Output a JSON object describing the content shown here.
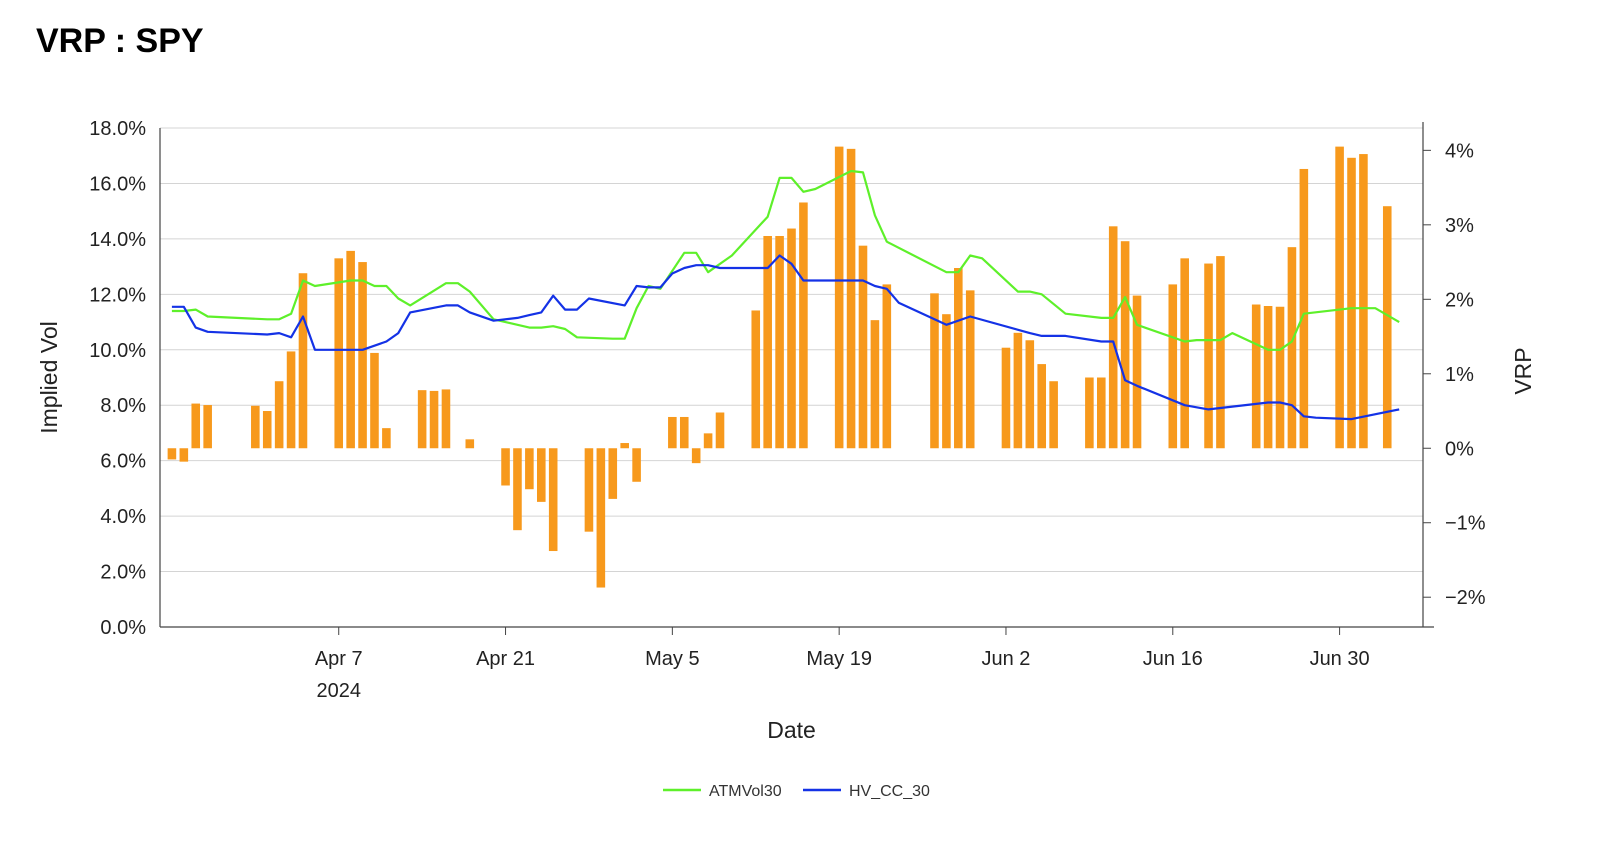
{
  "chart_data": {
    "type": "line+bar",
    "title": "VRP : SPY",
    "xlabel": "Date",
    "ylabel_left": "Implied Vol",
    "ylabel_right": "VRP",
    "x_ticks": [
      {
        "date": "2024-04-07",
        "label": "Apr 7",
        "sublabel": "2024"
      },
      {
        "date": "2024-04-21",
        "label": "Apr 21",
        "sublabel": ""
      },
      {
        "date": "2024-05-05",
        "label": "May 5",
        "sublabel": ""
      },
      {
        "date": "2024-05-19",
        "label": "May 19",
        "sublabel": ""
      },
      {
        "date": "2024-06-02",
        "label": "Jun 2",
        "sublabel": ""
      },
      {
        "date": "2024-06-16",
        "label": "Jun 16",
        "sublabel": ""
      },
      {
        "date": "2024-06-30",
        "label": "Jun 30",
        "sublabel": ""
      }
    ],
    "xlim": [
      "2024-03-23",
      "2024-07-07"
    ],
    "y_left": {
      "lim": [
        0,
        18
      ],
      "ticks": [
        0,
        2,
        4,
        6,
        8,
        10,
        12,
        14,
        16,
        18
      ],
      "labels": [
        "0.0%",
        "2.0%",
        "4.0%",
        "6.0%",
        "8.0%",
        "10.0%",
        "12.0%",
        "14.0%",
        "16.0%",
        "18.0%"
      ]
    },
    "y_right": {
      "lim": [
        -2.4,
        4.3
      ],
      "ticks": [
        -2,
        -1,
        0,
        1,
        2,
        3,
        4
      ],
      "labels": [
        "−2%",
        "−1%",
        "0%",
        "1%",
        "2%",
        "3%",
        "4%"
      ]
    },
    "grid": true,
    "legend_position": "bottom-center",
    "series": [
      {
        "name": "ATMVol30",
        "kind": "line",
        "axis": "left",
        "color": "#5ef02a",
        "points": [
          [
            "2024-03-24",
            11.4
          ],
          [
            "2024-03-25",
            11.4
          ],
          [
            "2024-03-26",
            11.45
          ],
          [
            "2024-03-27",
            11.2
          ],
          [
            "2024-04-01",
            11.1
          ],
          [
            "2024-04-02",
            11.1
          ],
          [
            "2024-04-03",
            11.3
          ],
          [
            "2024-04-04",
            12.5
          ],
          [
            "2024-04-05",
            12.3
          ],
          [
            "2024-04-08",
            12.5
          ],
          [
            "2024-04-09",
            12.5
          ],
          [
            "2024-04-10",
            12.3
          ],
          [
            "2024-04-11",
            12.3
          ],
          [
            "2024-04-12",
            11.85
          ],
          [
            "2024-04-13",
            11.6
          ],
          [
            "2024-04-16",
            12.4
          ],
          [
            "2024-04-17",
            12.4
          ],
          [
            "2024-04-18",
            12.1
          ],
          [
            "2024-04-20",
            11.1
          ],
          [
            "2024-04-22",
            10.9
          ],
          [
            "2024-04-23",
            10.8
          ],
          [
            "2024-04-24",
            10.8
          ],
          [
            "2024-04-25",
            10.85
          ],
          [
            "2024-04-26",
            10.75
          ],
          [
            "2024-04-27",
            10.45
          ],
          [
            "2024-04-30",
            10.4
          ],
          [
            "2024-05-01",
            10.4
          ],
          [
            "2024-05-02",
            11.5
          ],
          [
            "2024-05-03",
            12.3
          ],
          [
            "2024-05-04",
            12.2
          ],
          [
            "2024-05-06",
            13.5
          ],
          [
            "2024-05-07",
            13.5
          ],
          [
            "2024-05-08",
            12.8
          ],
          [
            "2024-05-10",
            13.4
          ],
          [
            "2024-05-13",
            14.8
          ],
          [
            "2024-05-14",
            16.2
          ],
          [
            "2024-05-15",
            16.2
          ],
          [
            "2024-05-16",
            15.7
          ],
          [
            "2024-05-17",
            15.8
          ],
          [
            "2024-05-20",
            16.45
          ],
          [
            "2024-05-21",
            16.4
          ],
          [
            "2024-05-22",
            14.85
          ],
          [
            "2024-05-23",
            13.9
          ],
          [
            "2024-05-28",
            12.8
          ],
          [
            "2024-05-29",
            12.8
          ],
          [
            "2024-05-30",
            13.4
          ],
          [
            "2024-05-31",
            13.3
          ],
          [
            "2024-06-03",
            12.1
          ],
          [
            "2024-06-04",
            12.1
          ],
          [
            "2024-06-05",
            12.0
          ],
          [
            "2024-06-07",
            11.3
          ],
          [
            "2024-06-10",
            11.15
          ],
          [
            "2024-06-11",
            11.15
          ],
          [
            "2024-06-12",
            11.9
          ],
          [
            "2024-06-13",
            10.9
          ],
          [
            "2024-06-17",
            10.3
          ],
          [
            "2024-06-18",
            10.35
          ],
          [
            "2024-06-20",
            10.35
          ],
          [
            "2024-06-21",
            10.6
          ],
          [
            "2024-06-24",
            10.0
          ],
          [
            "2024-06-25",
            10.0
          ],
          [
            "2024-06-26",
            10.3
          ],
          [
            "2024-06-27",
            11.3
          ],
          [
            "2024-07-01",
            11.5
          ],
          [
            "2024-07-02",
            11.5
          ],
          [
            "2024-07-03",
            11.5
          ],
          [
            "2024-07-05",
            11.0
          ]
        ]
      },
      {
        "name": "HV_CC_30",
        "kind": "line",
        "axis": "left",
        "color": "#1432e6",
        "points": [
          [
            "2024-03-24",
            11.55
          ],
          [
            "2024-03-25",
            11.55
          ],
          [
            "2024-03-26",
            10.8
          ],
          [
            "2024-03-27",
            10.65
          ],
          [
            "2024-04-01",
            10.55
          ],
          [
            "2024-04-02",
            10.6
          ],
          [
            "2024-04-03",
            10.45
          ],
          [
            "2024-04-04",
            11.2
          ],
          [
            "2024-04-05",
            10.0
          ],
          [
            "2024-04-08",
            10.0
          ],
          [
            "2024-04-09",
            10.0
          ],
          [
            "2024-04-11",
            10.3
          ],
          [
            "2024-04-12",
            10.6
          ],
          [
            "2024-04-13",
            11.35
          ],
          [
            "2024-04-16",
            11.6
          ],
          [
            "2024-04-17",
            11.6
          ],
          [
            "2024-04-18",
            11.35
          ],
          [
            "2024-04-20",
            11.05
          ],
          [
            "2024-04-22",
            11.15
          ],
          [
            "2024-04-23",
            11.25
          ],
          [
            "2024-04-24",
            11.35
          ],
          [
            "2024-04-25",
            11.95
          ],
          [
            "2024-04-26",
            11.45
          ],
          [
            "2024-04-27",
            11.45
          ],
          [
            "2024-04-28",
            11.85
          ],
          [
            "2024-05-01",
            11.6
          ],
          [
            "2024-05-02",
            12.3
          ],
          [
            "2024-05-03",
            12.25
          ],
          [
            "2024-05-04",
            12.25
          ],
          [
            "2024-05-05",
            12.75
          ],
          [
            "2024-05-06",
            12.95
          ],
          [
            "2024-05-07",
            13.05
          ],
          [
            "2024-05-08",
            13.05
          ],
          [
            "2024-05-09",
            12.95
          ],
          [
            "2024-05-13",
            12.95
          ],
          [
            "2024-05-14",
            13.4
          ],
          [
            "2024-05-15",
            13.1
          ],
          [
            "2024-05-16",
            12.5
          ],
          [
            "2024-05-20",
            12.5
          ],
          [
            "2024-05-21",
            12.5
          ],
          [
            "2024-05-22",
            12.3
          ],
          [
            "2024-05-23",
            12.2
          ],
          [
            "2024-05-24",
            11.7
          ],
          [
            "2024-05-28",
            10.9
          ],
          [
            "2024-05-30",
            11.2
          ],
          [
            "2024-06-04",
            10.6
          ],
          [
            "2024-06-05",
            10.5
          ],
          [
            "2024-06-07",
            10.5
          ],
          [
            "2024-06-10",
            10.3
          ],
          [
            "2024-06-11",
            10.3
          ],
          [
            "2024-06-12",
            8.9
          ],
          [
            "2024-06-13",
            8.7
          ],
          [
            "2024-06-17",
            8.0
          ],
          [
            "2024-06-19",
            7.85
          ],
          [
            "2024-06-24",
            8.1
          ],
          [
            "2024-06-25",
            8.1
          ],
          [
            "2024-06-26",
            8.0
          ],
          [
            "2024-06-27",
            7.6
          ],
          [
            "2024-06-28",
            7.55
          ],
          [
            "2024-07-01",
            7.5
          ],
          [
            "2024-07-05",
            7.85
          ]
        ]
      },
      {
        "name": "VRP",
        "kind": "bar",
        "axis": "right",
        "color": "#f7991c",
        "points": [
          [
            "2024-03-24",
            -0.15
          ],
          [
            "2024-03-25",
            -0.18
          ],
          [
            "2024-03-26",
            0.6
          ],
          [
            "2024-03-27",
            0.58
          ],
          [
            "2024-03-31",
            0.57
          ],
          [
            "2024-04-01",
            0.5
          ],
          [
            "2024-04-02",
            0.9
          ],
          [
            "2024-04-03",
            1.3
          ],
          [
            "2024-04-04",
            2.35
          ],
          [
            "2024-04-07",
            2.55
          ],
          [
            "2024-04-08",
            2.65
          ],
          [
            "2024-04-09",
            2.5
          ],
          [
            "2024-04-10",
            1.28
          ],
          [
            "2024-04-11",
            0.27
          ],
          [
            "2024-04-14",
            0.78
          ],
          [
            "2024-04-15",
            0.77
          ],
          [
            "2024-04-16",
            0.79
          ],
          [
            "2024-04-18",
            0.12
          ],
          [
            "2024-04-21",
            -0.5
          ],
          [
            "2024-04-22",
            -1.1
          ],
          [
            "2024-04-23",
            -0.55
          ],
          [
            "2024-04-24",
            -0.72
          ],
          [
            "2024-04-25",
            -1.38
          ],
          [
            "2024-04-28",
            -1.12
          ],
          [
            "2024-04-29",
            -1.87
          ],
          [
            "2024-04-30",
            -0.68
          ],
          [
            "2024-05-01",
            0.07
          ],
          [
            "2024-05-02",
            -0.45
          ],
          [
            "2024-05-05",
            0.42
          ],
          [
            "2024-05-06",
            0.42
          ],
          [
            "2024-05-07",
            -0.2
          ],
          [
            "2024-05-08",
            0.2
          ],
          [
            "2024-05-09",
            0.48
          ],
          [
            "2024-05-12",
            1.85
          ],
          [
            "2024-05-13",
            2.85
          ],
          [
            "2024-05-14",
            2.85
          ],
          [
            "2024-05-15",
            2.95
          ],
          [
            "2024-05-16",
            3.3
          ],
          [
            "2024-05-19",
            4.05
          ],
          [
            "2024-05-20",
            4.02
          ],
          [
            "2024-05-21",
            2.72
          ],
          [
            "2024-05-22",
            1.72
          ],
          [
            "2024-05-23",
            2.2
          ],
          [
            "2024-05-27",
            2.08
          ],
          [
            "2024-05-28",
            1.8
          ],
          [
            "2024-05-29",
            2.42
          ],
          [
            "2024-05-30",
            2.12
          ],
          [
            "2024-06-02",
            1.35
          ],
          [
            "2024-06-03",
            1.55
          ],
          [
            "2024-06-04",
            1.45
          ],
          [
            "2024-06-05",
            1.13
          ],
          [
            "2024-06-06",
            0.9
          ],
          [
            "2024-06-09",
            0.95
          ],
          [
            "2024-06-10",
            0.95
          ],
          [
            "2024-06-11",
            2.98
          ],
          [
            "2024-06-12",
            2.78
          ],
          [
            "2024-06-13",
            2.05
          ],
          [
            "2024-06-16",
            2.2
          ],
          [
            "2024-06-17",
            2.55
          ],
          [
            "2024-06-19",
            2.48
          ],
          [
            "2024-06-20",
            2.58
          ],
          [
            "2024-06-23",
            1.93
          ],
          [
            "2024-06-24",
            1.91
          ],
          [
            "2024-06-25",
            1.9
          ],
          [
            "2024-06-26",
            2.7
          ],
          [
            "2024-06-27",
            3.75
          ],
          [
            "2024-06-30",
            4.05
          ],
          [
            "2024-07-01",
            3.9
          ],
          [
            "2024-07-02",
            3.95
          ],
          [
            "2024-07-04",
            3.25
          ]
        ]
      }
    ]
  }
}
